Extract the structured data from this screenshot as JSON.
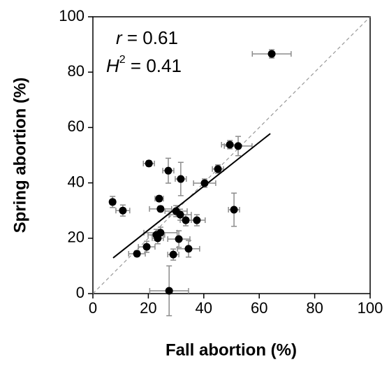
{
  "chart_data": {
    "type": "scatter",
    "xlabel": "Fall abortion (%)",
    "ylabel": "Spring abortion (%)",
    "xlim": [
      0,
      100
    ],
    "ylim": [
      0,
      100
    ],
    "xticks": [
      0,
      20,
      40,
      60,
      80,
      100
    ],
    "yticks": [
      0,
      20,
      40,
      60,
      80,
      100
    ],
    "color": "#000000",
    "error_color": "#8c8c8c",
    "diagonal": true,
    "annotations": [
      {
        "symbol": "r",
        "text": " = 0.61"
      },
      {
        "symbol": "H",
        "superscript": "2",
        "text": " = 0.41"
      }
    ],
    "fit": {
      "x": [
        7.3,
        64
      ],
      "y": [
        12.9,
        57.8
      ]
    },
    "x": [
      64.5,
      49.4,
      52.4,
      45.1,
      40.3,
      20.2,
      27.2,
      31.7,
      7.1,
      10.8,
      23.9,
      24.4,
      30,
      31.5,
      33.5,
      37.5,
      50.9,
      24.4,
      22.9,
      23.4,
      31,
      19.4,
      34.5,
      15.9,
      29,
      27.5
    ],
    "y": [
      86.6,
      53.8,
      53.3,
      45,
      39.9,
      47,
      44.4,
      41.4,
      33.1,
      30,
      34.3,
      30.6,
      29.8,
      28.5,
      26.5,
      26.5,
      30.3,
      22,
      21.2,
      20,
      19.7,
      16.9,
      16.2,
      14.4,
      14.1,
      1
    ],
    "xerr": [
      7,
      3,
      5,
      2,
      4,
      2,
      2,
      2,
      1,
      2.5,
      1.5,
      4,
      4,
      4,
      2,
      3,
      2,
      6,
      3,
      2,
      4,
      3,
      4,
      3,
      2,
      7
    ],
    "yerr": [
      1.5,
      1.5,
      3.5,
      1.5,
      1.5,
      1,
      4.5,
      6,
      2,
      2,
      1,
      1,
      2,
      2,
      2,
      2,
      6,
      2,
      2,
      2,
      3,
      2,
      3,
      1,
      2,
      9
    ]
  }
}
